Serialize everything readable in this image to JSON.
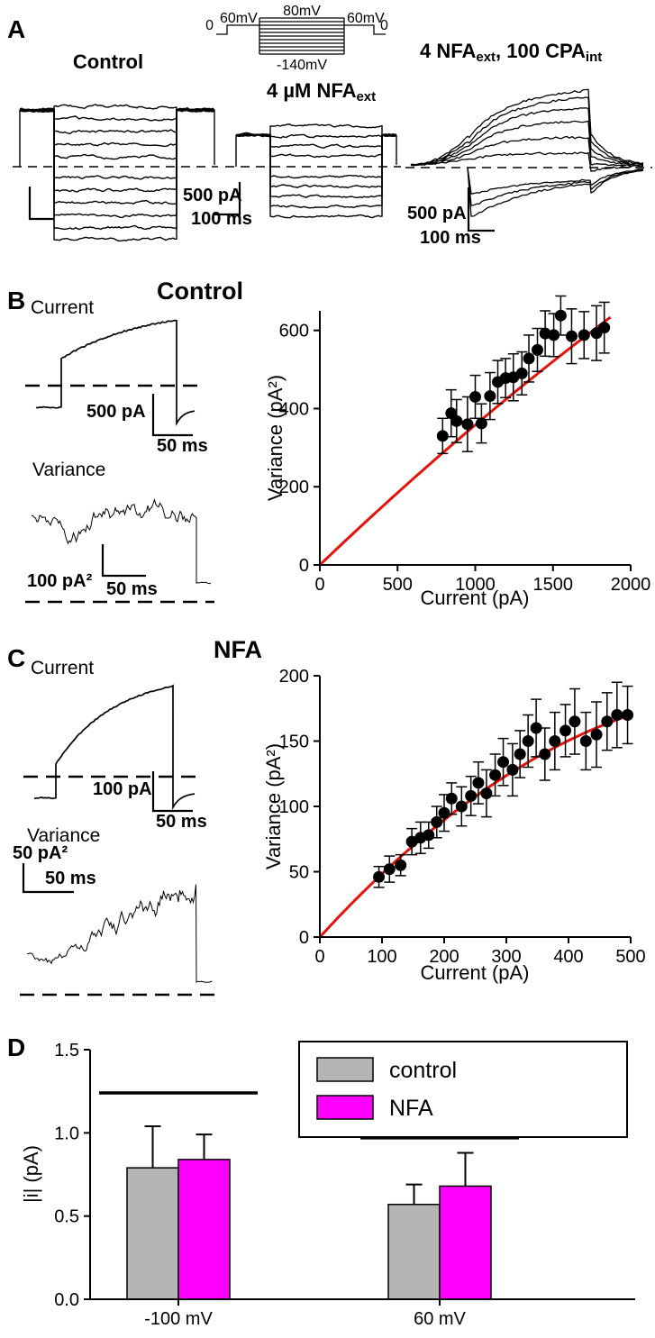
{
  "figure": {
    "panelA": {
      "label": "A",
      "protocol": {
        "zero_left": "0",
        "sixty_left": "60mV",
        "eighty": "80mV",
        "sixty_right": "60mV",
        "zero_right": "0",
        "minus140": "-140mV"
      },
      "control_label": "Control",
      "nfa_label": {
        "pre": "4 µM NFA",
        "sub": "ext"
      },
      "cpa_label": {
        "p1": "4 NFA",
        "s1": "ext",
        "p2": ", 100 CPA",
        "s2": "int"
      },
      "scale_mid": {
        "v": "500 pA",
        "h": "100 ms"
      },
      "scale_right": {
        "v": "500 pA",
        "h": "100 ms"
      }
    },
    "panelB": {
      "label": "B",
      "current": "Current",
      "variance": "Variance",
      "scale_current_v": "500 pA",
      "scale_current_h": "50 ms",
      "scale_var_v": "100 pA²",
      "scale_var_h": "50 ms"
    },
    "panelC": {
      "label": "C",
      "current": "Current",
      "variance": "Variance",
      "scale_current_v": "100 pA",
      "scale_current_h": "50 ms",
      "scale_var_v": "50 pA²",
      "scale_var_h": "50 ms"
    },
    "panelD": {
      "label": "D"
    }
  },
  "chart_data": [
    {
      "id": "scatterB",
      "type": "scatter",
      "title": "Control",
      "xlabel": "Current (pA)",
      "ylabel": "Variance (pA²)",
      "xlim": [
        0,
        2000
      ],
      "ylim": [
        0,
        650
      ],
      "x_ticks": [
        0,
        500,
        1000,
        1500,
        2000
      ],
      "y_ticks": [
        0,
        200,
        400,
        600
      ],
      "point_color": "#000000",
      "fit": {
        "a": 0.38,
        "b": -2.2e-05,
        "color": "#e8120c",
        "x_range": [
          0,
          1870
        ]
      },
      "points": [
        {
          "x": 790,
          "y": 330,
          "e": 45
        },
        {
          "x": 845,
          "y": 388,
          "e": 60
        },
        {
          "x": 880,
          "y": 368,
          "e": 55
        },
        {
          "x": 950,
          "y": 360,
          "e": 70
        },
        {
          "x": 1000,
          "y": 430,
          "e": 55
        },
        {
          "x": 1040,
          "y": 362,
          "e": 50
        },
        {
          "x": 1095,
          "y": 432,
          "e": 60
        },
        {
          "x": 1145,
          "y": 468,
          "e": 55
        },
        {
          "x": 1195,
          "y": 478,
          "e": 50
        },
        {
          "x": 1245,
          "y": 480,
          "e": 60
        },
        {
          "x": 1300,
          "y": 490,
          "e": 55
        },
        {
          "x": 1345,
          "y": 528,
          "e": 60
        },
        {
          "x": 1400,
          "y": 550,
          "e": 55
        },
        {
          "x": 1450,
          "y": 592,
          "e": 58
        },
        {
          "x": 1505,
          "y": 588,
          "e": 55
        },
        {
          "x": 1550,
          "y": 638,
          "e": 50
        },
        {
          "x": 1620,
          "y": 585,
          "e": 70
        },
        {
          "x": 1700,
          "y": 588,
          "e": 60
        },
        {
          "x": 1780,
          "y": 593,
          "e": 70
        },
        {
          "x": 1830,
          "y": 607,
          "e": 65
        }
      ]
    },
    {
      "id": "scatterC",
      "type": "scatter",
      "title": "NFA",
      "xlabel": "Current (pA)",
      "ylabel": "Variance (pA²)",
      "xlim": [
        0,
        500
      ],
      "ylim": [
        0,
        200
      ],
      "x_ticks": [
        0,
        100,
        200,
        300,
        400,
        500
      ],
      "y_ticks": [
        0,
        50,
        100,
        150,
        200
      ],
      "point_color": "#000000",
      "fit": {
        "a": 0.52,
        "b": -0.00036,
        "color": "#e8120c",
        "x_range": [
          0,
          500
        ]
      },
      "points": [
        {
          "x": 95,
          "y": 46,
          "e": 8
        },
        {
          "x": 112,
          "y": 52,
          "e": 10
        },
        {
          "x": 130,
          "y": 55,
          "e": 8
        },
        {
          "x": 148,
          "y": 73,
          "e": 10
        },
        {
          "x": 162,
          "y": 76,
          "e": 12
        },
        {
          "x": 175,
          "y": 78,
          "e": 10
        },
        {
          "x": 188,
          "y": 88,
          "e": 12
        },
        {
          "x": 200,
          "y": 95,
          "e": 14
        },
        {
          "x": 212,
          "y": 106,
          "e": 12
        },
        {
          "x": 228,
          "y": 100,
          "e": 15
        },
        {
          "x": 243,
          "y": 108,
          "e": 15
        },
        {
          "x": 255,
          "y": 118,
          "e": 16
        },
        {
          "x": 268,
          "y": 110,
          "e": 18
        },
        {
          "x": 282,
          "y": 124,
          "e": 16
        },
        {
          "x": 295,
          "y": 134,
          "e": 18
        },
        {
          "x": 310,
          "y": 128,
          "e": 20
        },
        {
          "x": 322,
          "y": 140,
          "e": 18
        },
        {
          "x": 335,
          "y": 150,
          "e": 20
        },
        {
          "x": 348,
          "y": 160,
          "e": 22
        },
        {
          "x": 362,
          "y": 140,
          "e": 20
        },
        {
          "x": 378,
          "y": 150,
          "e": 22
        },
        {
          "x": 395,
          "y": 158,
          "e": 20
        },
        {
          "x": 410,
          "y": 165,
          "e": 25
        },
        {
          "x": 428,
          "y": 150,
          "e": 22
        },
        {
          "x": 445,
          "y": 155,
          "e": 25
        },
        {
          "x": 462,
          "y": 165,
          "e": 22
        },
        {
          "x": 478,
          "y": 170,
          "e": 25
        },
        {
          "x": 495,
          "y": 170,
          "e": 22
        }
      ]
    },
    {
      "id": "barsD",
      "type": "bar",
      "ylabel": "|i| (pA)",
      "ylim": [
        0,
        1.5
      ],
      "y_ticks": [
        "0.0",
        "0.5",
        "1.0",
        "1.5"
      ],
      "categories": [
        "-100 mV",
        "60 mV"
      ],
      "series": [
        {
          "name": "control",
          "color": "#b5b5b5",
          "values": [
            0.79,
            0.57
          ],
          "errors": [
            0.25,
            0.12
          ]
        },
        {
          "name": "NFA",
          "color": "#ff00ff",
          "values": [
            0.84,
            0.68
          ],
          "errors": [
            0.15,
            0.2
          ]
        }
      ],
      "sig_lines": [
        {
          "category": 0,
          "value": 1.24
        },
        {
          "category": 1,
          "value": 0.97
        }
      ],
      "legend_position": "top-right"
    }
  ]
}
